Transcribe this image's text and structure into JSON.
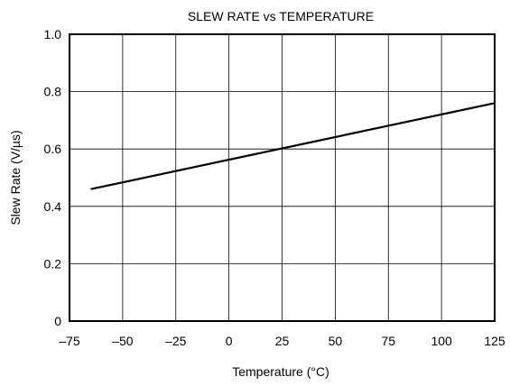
{
  "chart_data": {
    "type": "line",
    "title": "SLEW RATE vs TEMPERATURE",
    "xlabel": "Temperature (°C)",
    "ylabel": "Slew Rate (V/µs)",
    "xlim": [
      -75,
      125
    ],
    "ylim": [
      0,
      1.0
    ],
    "x_ticks": [
      -75,
      -50,
      -25,
      0,
      25,
      50,
      75,
      100,
      125
    ],
    "x_tick_labels": [
      "–75",
      "–50",
      "–25",
      "0",
      "25",
      "50",
      "75",
      "100",
      "125"
    ],
    "y_ticks": [
      0,
      0.2,
      0.4,
      0.6,
      0.8,
      1.0
    ],
    "y_tick_labels": [
      "0",
      "0.2",
      "0.4",
      "0.6",
      "0.8",
      "1.0"
    ],
    "grid": true,
    "series": [
      {
        "x": [
          -65,
          125
        ],
        "y": [
          0.46,
          0.76
        ]
      }
    ]
  }
}
